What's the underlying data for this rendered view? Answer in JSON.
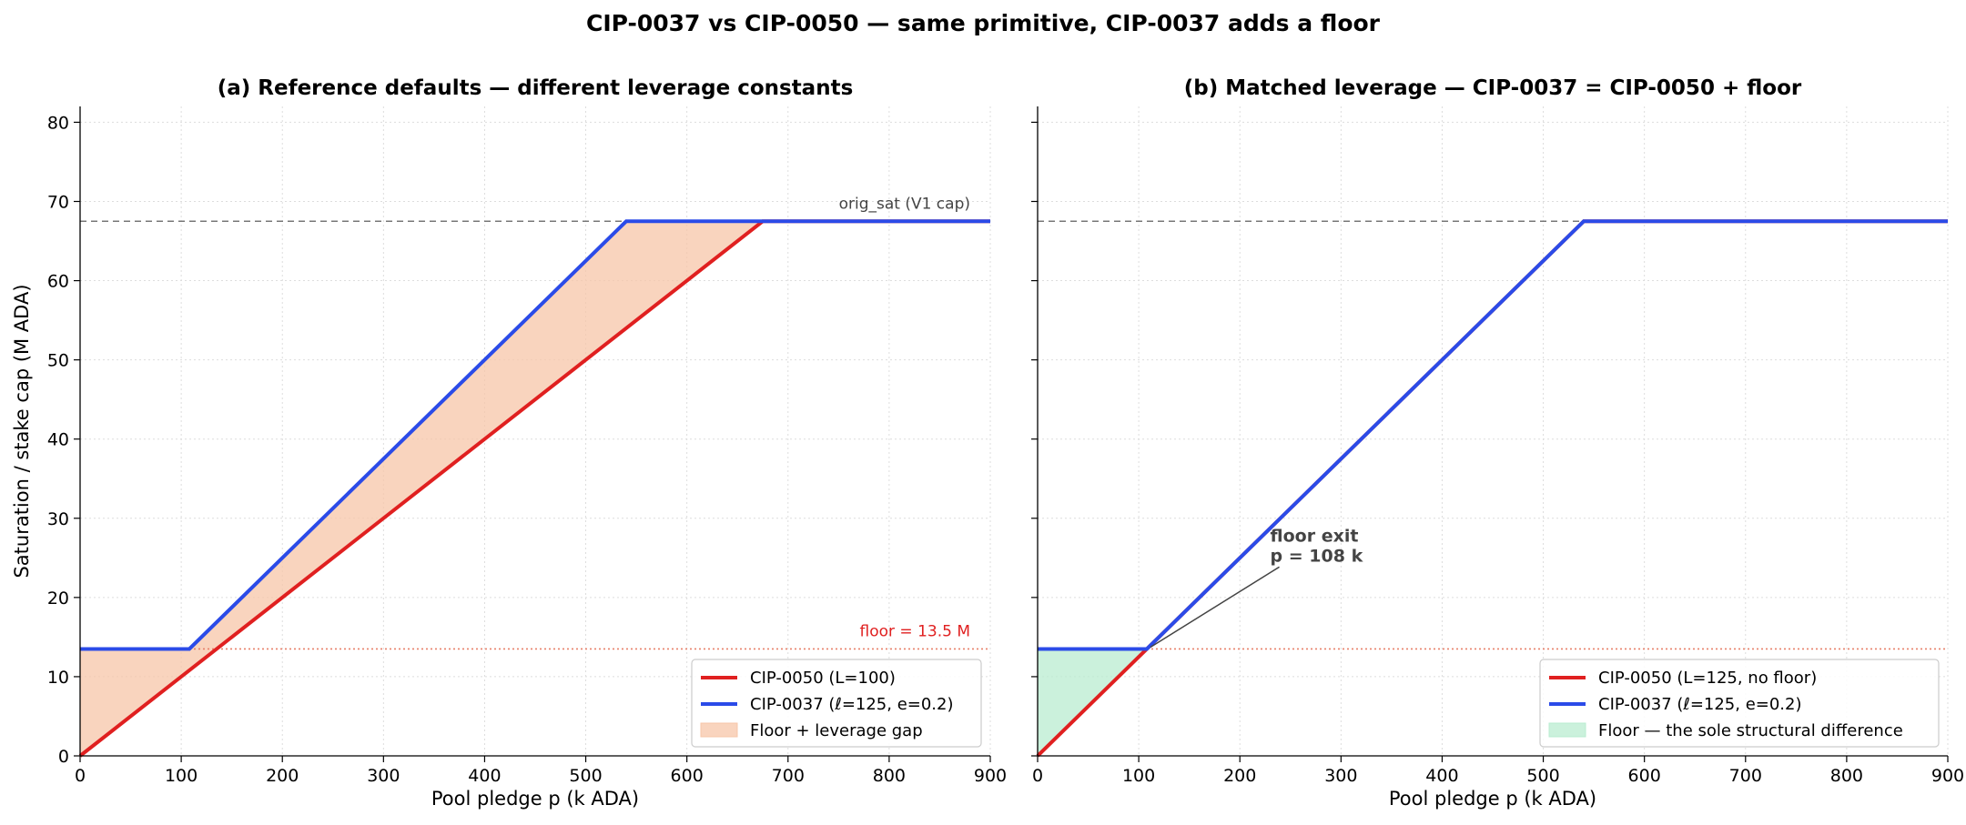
{
  "figure": {
    "title": "CIP-0037 vs CIP-0050 — same primitive, CIP-0037 adds a floor"
  },
  "colors": {
    "cip0050": "#e02020",
    "cip0037": "#2b4be8",
    "gap_fill": "#f7c6a8",
    "floor_fill": "#b9ecd0",
    "sat_line": "#777777",
    "floor_line": "#e8806a",
    "grid": "#dddddd"
  },
  "chart_data": [
    {
      "type": "line",
      "title": "(a) Reference defaults — different leverage constants",
      "xlabel": "Pool pledge  p  (k ADA)",
      "ylabel": "Saturation / stake cap  (M ADA)",
      "xlim": [
        0,
        900
      ],
      "ylim": [
        0,
        82
      ],
      "xticks": [
        0,
        100,
        200,
        300,
        400,
        500,
        600,
        700,
        800,
        900
      ],
      "yticks": [
        0,
        10,
        20,
        30,
        40,
        50,
        60,
        70,
        80
      ],
      "grid": true,
      "legend_position": "lower-right",
      "series": [
        {
          "name": "CIP-0050 (L=100)",
          "color": "#e02020",
          "x": [
            0,
            675,
            900
          ],
          "y": [
            0,
            67.5,
            67.5
          ]
        },
        {
          "name": "CIP-0037 (ℓ=125, e=0.2)",
          "color": "#2b4be8",
          "x": [
            0,
            108,
            540,
            900
          ],
          "y": [
            13.5,
            13.5,
            67.5,
            67.5
          ]
        }
      ],
      "fill": {
        "name": "Floor + leverage gap",
        "between": [
          "CIP-0050 (L=100)",
          "CIP-0037 (ℓ=125, e=0.2)"
        ],
        "x_range": [
          0,
          675
        ],
        "color": "#f7c6a8"
      },
      "hlines": [
        {
          "y": 67.5,
          "style": "dashed",
          "color": "#777777",
          "label": "orig_sat (V1 cap)"
        },
        {
          "y": 13.5,
          "style": "dotted",
          "color": "#e8806a",
          "label": "floor = 13.5 M"
        }
      ]
    },
    {
      "type": "line",
      "title": "(b) Matched leverage — CIP-0037 = CIP-0050 + floor",
      "xlabel": "Pool pledge  p  (k ADA)",
      "ylabel": "",
      "xlim": [
        0,
        900
      ],
      "ylim": [
        0,
        82
      ],
      "xticks": [
        0,
        100,
        200,
        300,
        400,
        500,
        600,
        700,
        800,
        900
      ],
      "yticks": [
        0,
        10,
        20,
        30,
        40,
        50,
        60,
        70,
        80
      ],
      "grid": true,
      "legend_position": "lower-right",
      "series": [
        {
          "name": "CIP-0050 (L=125, no floor)",
          "color": "#e02020",
          "x": [
            0,
            540,
            900
          ],
          "y": [
            0,
            67.5,
            67.5
          ]
        },
        {
          "name": "CIP-0037 (ℓ=125, e=0.2)",
          "color": "#2b4be8",
          "x": [
            0,
            108,
            540,
            900
          ],
          "y": [
            13.5,
            13.5,
            67.5,
            67.5
          ]
        }
      ],
      "fill": {
        "name": "Floor — the sole structural difference",
        "between": [
          "CIP-0050 (L=125, no floor)",
          "CIP-0037 (ℓ=125, e=0.2)"
        ],
        "x_range": [
          0,
          108
        ],
        "color": "#b9ecd0"
      },
      "hlines": [
        {
          "y": 67.5,
          "style": "dashed",
          "color": "#777777",
          "label": ""
        },
        {
          "y": 13.5,
          "style": "dotted",
          "color": "#e8806a",
          "label": ""
        }
      ],
      "annotation": {
        "text": [
          "floor exit",
          "p = 108 k"
        ],
        "point": [
          108,
          13.5
        ],
        "text_at": [
          230,
          25
        ]
      }
    }
  ]
}
